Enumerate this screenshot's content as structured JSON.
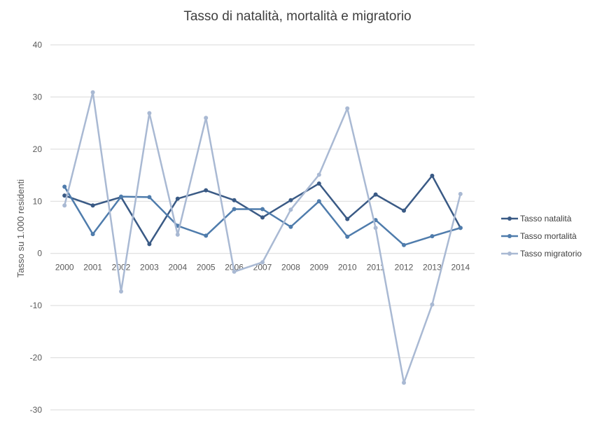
{
  "chart_data": {
    "type": "line",
    "title": "Tasso di natalità, mortalità e migratorio",
    "xlabel": "",
    "ylabel": "Tasso su 1.000 residenti",
    "categories": [
      "2000",
      "2001",
      "2002",
      "2003",
      "2004",
      "2005",
      "2006",
      "2007",
      "2008",
      "2009",
      "2010",
      "2011",
      "2012",
      "2013",
      "2014"
    ],
    "ylim": [
      -30,
      40
    ],
    "yticks": [
      40,
      30,
      20,
      10,
      0,
      -10,
      -20,
      -30
    ],
    "grid": true,
    "legend_position": "right",
    "series": [
      {
        "name": "Tasso natalità",
        "color": "#3a5a85",
        "values": [
          11.1,
          9.2,
          10.8,
          1.8,
          10.5,
          12.1,
          10.2,
          6.9,
          10.2,
          13.4,
          6.6,
          11.3,
          8.2,
          14.9,
          4.9
        ]
      },
      {
        "name": "Tasso mortalità",
        "color": "#4f7cac",
        "values": [
          12.8,
          3.7,
          10.9,
          10.8,
          5.3,
          3.4,
          8.5,
          8.5,
          5.1,
          10.0,
          3.2,
          6.4,
          1.6,
          3.3,
          4.9
        ]
      },
      {
        "name": "Tasso migratorio",
        "color": "#a9b9d3",
        "values": [
          9.2,
          30.9,
          -7.3,
          26.9,
          3.6,
          26.0,
          -3.5,
          -1.7,
          8.4,
          15.1,
          27.8,
          4.9,
          -24.8,
          -9.8,
          11.4
        ]
      }
    ]
  }
}
